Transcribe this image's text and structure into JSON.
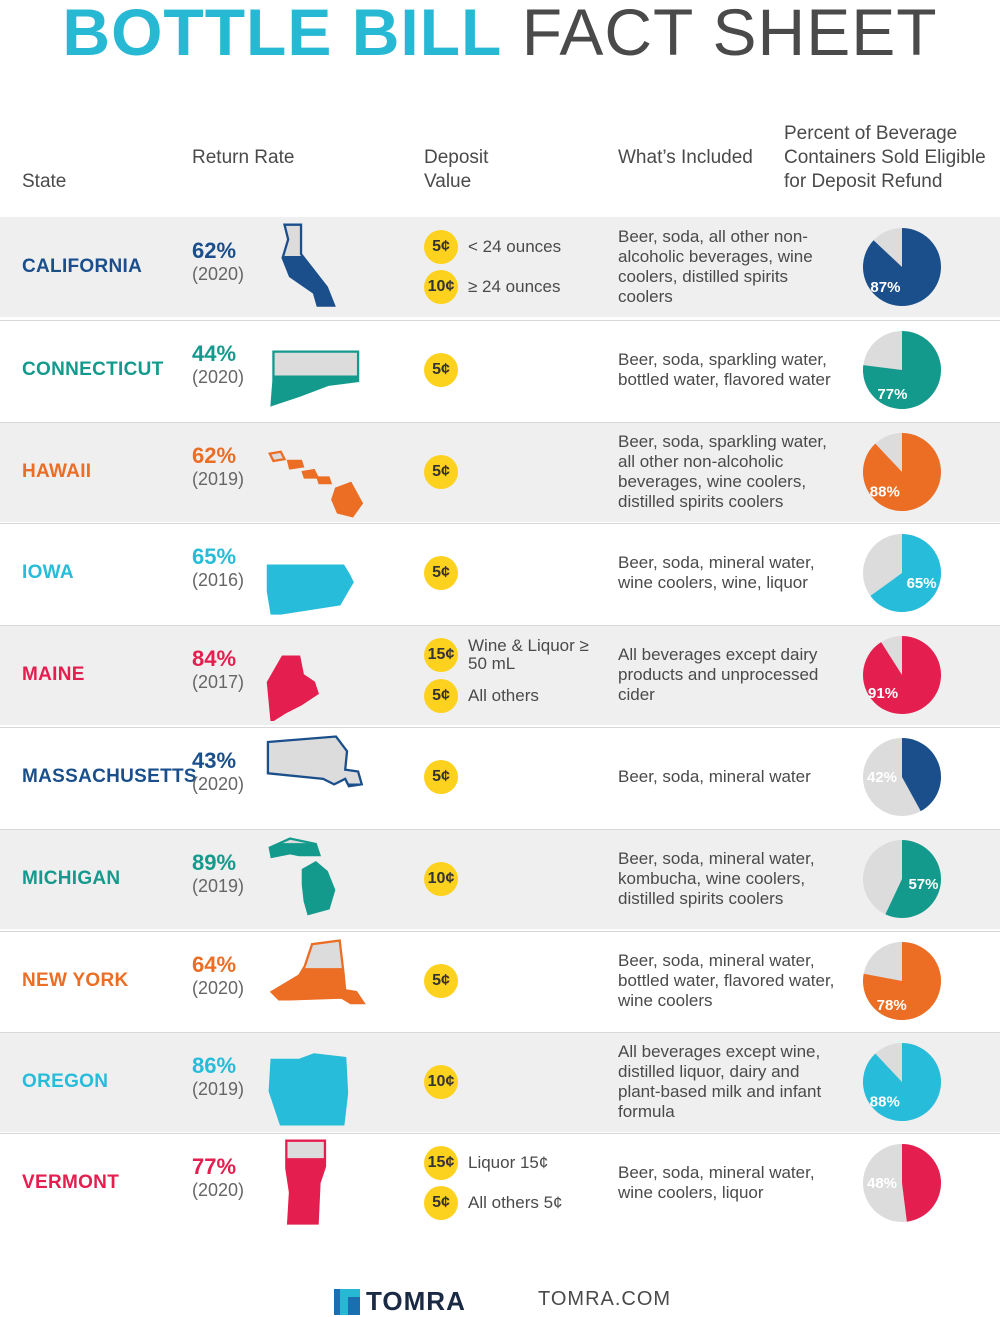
{
  "title": {
    "bold": "BOTTLE BILL",
    "light": "FACT SHEET"
  },
  "headers": {
    "state": "State",
    "rate": "Return Rate",
    "deposit": "Deposit Value",
    "included": "What’s Included",
    "percent": "Percent of Beverage Containers Sold Eligible for Deposit Refund"
  },
  "rows": [
    {
      "state": "CALIFORNIA",
      "color": "#1a4f8b",
      "rate": "62%",
      "year": "(2020)",
      "deposits": [
        {
          "coin": "5¢",
          "label": "< 24 ounces"
        },
        {
          "coin": "10¢",
          "label": "≥ 24 ounces"
        }
      ],
      "included": "Beer, soda, all other non-alcoholic beverages, wine coolers, distilled spirits coolers",
      "eligible": 87,
      "eligible_label": "87%",
      "map_icon": "california-icon"
    },
    {
      "state": "CONNECTICUT",
      "color": "#149a8c",
      "rate": "44%",
      "year": "(2020)",
      "deposits": [
        {
          "coin": "5¢",
          "label": ""
        }
      ],
      "included": "Beer, soda, sparkling water, bottled water, flavored water",
      "eligible": 77,
      "eligible_label": "77%",
      "map_icon": "connecticut-icon"
    },
    {
      "state": "HAWAII",
      "color": "#ec6d24",
      "rate": "62%",
      "year": "(2019)",
      "deposits": [
        {
          "coin": "5¢",
          "label": ""
        }
      ],
      "included": "Beer, soda, sparkling water, all other non-alcoholic beverages, wine coolers, distilled spirits coolers",
      "eligible": 88,
      "eligible_label": "88%",
      "map_icon": "hawaii-icon"
    },
    {
      "state": "IOWA",
      "color": "#27bcd9",
      "rate": "65%",
      "year": "(2016)",
      "deposits": [
        {
          "coin": "5¢",
          "label": ""
        }
      ],
      "included": "Beer, soda, mineral water, wine coolers, wine, liquor",
      "eligible": 65,
      "eligible_label": "65%",
      "map_icon": "iowa-icon"
    },
    {
      "state": "MAINE",
      "color": "#e41e4f",
      "rate": "84%",
      "year": "(2017)",
      "deposits": [
        {
          "coin": "15¢",
          "label": "Wine & Liquor ≥ 50 mL"
        },
        {
          "coin": "5¢",
          "label": "All others"
        }
      ],
      "included": "All beverages except dairy products and unprocessed cider",
      "eligible": 91,
      "eligible_label": "91%",
      "map_icon": "maine-icon"
    },
    {
      "state": "MASSACHUSETTS",
      "color": "#1a4f8b",
      "rate": "43%",
      "year": "(2020)",
      "deposits": [
        {
          "coin": "5¢",
          "label": ""
        }
      ],
      "included": "Beer, soda, mineral water",
      "eligible": 42,
      "eligible_label": "42%",
      "map_icon": "massachusetts-icon"
    },
    {
      "state": "MICHIGAN",
      "color": "#149a8c",
      "rate": "89%",
      "year": "(2019)",
      "deposits": [
        {
          "coin": "10¢",
          "label": ""
        }
      ],
      "included": "Beer, soda, mineral water, kombucha, wine coolers, distilled spirits coolers",
      "eligible": 57,
      "eligible_label": "57%",
      "map_icon": "michigan-icon"
    },
    {
      "state": "NEW YORK",
      "color": "#ec6d24",
      "rate": "64%",
      "year": "(2020)",
      "deposits": [
        {
          "coin": "5¢",
          "label": ""
        }
      ],
      "included": "Beer, soda, mineral water, bottled water, flavored water, wine coolers",
      "eligible": 78,
      "eligible_label": "78%",
      "map_icon": "new-york-icon"
    },
    {
      "state": "OREGON",
      "color": "#27bcd9",
      "rate": "86%",
      "year": "(2019)",
      "deposits": [
        {
          "coin": "10¢",
          "label": ""
        }
      ],
      "included": "All beverages except wine, distilled liquor, dairy and plant-based milk and infant formula",
      "eligible": 88,
      "eligible_label": "88%",
      "map_icon": "oregon-icon"
    },
    {
      "state": "VERMONT",
      "color": "#e41e4f",
      "rate": "77%",
      "year": "(2020)",
      "deposits": [
        {
          "coin": "15¢",
          "label": "Liquor 15¢"
        },
        {
          "coin": "5¢",
          "label": "All others 5¢"
        }
      ],
      "included": "Beer, soda, mineral water, wine coolers, liquor",
      "eligible": 48,
      "eligible_label": "48%",
      "map_icon": "vermont-icon"
    }
  ],
  "footer": {
    "brand": "TOMRA",
    "site": "TOMRA.COM"
  }
}
